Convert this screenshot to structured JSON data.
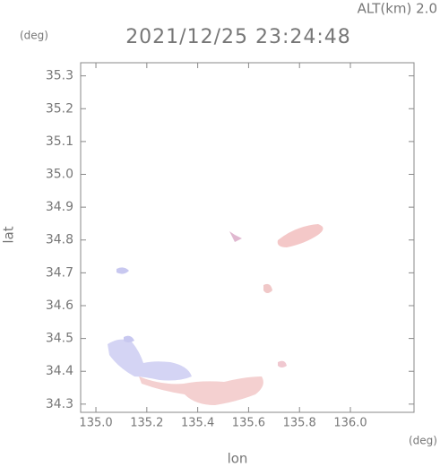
{
  "chart_data": {
    "type": "map",
    "title": "2021/12/25 23:24:48",
    "annotation": "ALT(km) 2.0",
    "y_unit": "(deg)",
    "x_unit": "(deg)",
    "x_label": "lon",
    "y_label": "lat",
    "xlim": [
      134.94,
      136.25
    ],
    "ylim": [
      34.275,
      35.34
    ],
    "xticks": [
      {
        "value": 135.0,
        "label": "135.0"
      },
      135.2,
      135.4,
      135.6,
      135.8,
      {
        "value": 136.0,
        "label": "136.0"
      }
    ],
    "yticks": [
      34.3,
      34.4,
      34.5,
      34.6,
      34.7,
      34.8,
      34.9,
      {
        "value": 35.0,
        "label": "35.0"
      },
      35.1,
      35.2,
      35.3
    ]
  }
}
